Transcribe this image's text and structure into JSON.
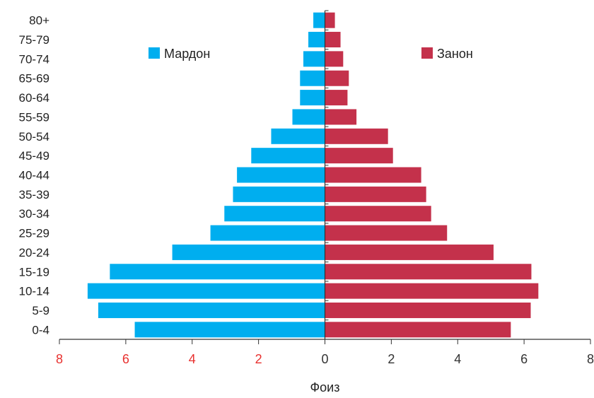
{
  "chart_data": {
    "type": "bar",
    "orientation": "horizontal",
    "layout": "population-pyramid",
    "categories": [
      "80+",
      "75-79",
      "70-74",
      "65-69",
      "60-64",
      "55-59",
      "50-54",
      "45-49",
      "40-44",
      "35-39",
      "30-34",
      "25-29",
      "20-24",
      "15-19",
      "10-14",
      "5-9",
      "0-4"
    ],
    "series": [
      {
        "name": "Мардон",
        "side": "left",
        "color": "#00aeef",
        "values": [
          0.35,
          0.5,
          0.65,
          0.75,
          0.75,
          0.98,
          1.62,
          2.22,
          2.65,
          2.77,
          3.03,
          3.45,
          4.6,
          6.48,
          7.15,
          6.83,
          5.73
        ]
      },
      {
        "name": "Занон",
        "side": "right",
        "color": "#c4314b",
        "values": [
          0.3,
          0.47,
          0.55,
          0.72,
          0.68,
          0.95,
          1.9,
          2.05,
          2.9,
          3.05,
          3.2,
          3.68,
          5.08,
          6.22,
          6.43,
          6.2,
          5.6
        ]
      }
    ],
    "xlabel": "Фоиз",
    "ylabel": "",
    "title": "",
    "xlim": [
      -8,
      8
    ],
    "x_tick_labels": [
      {
        "value": -8,
        "label": "8"
      },
      {
        "value": -6,
        "label": "6"
      },
      {
        "value": -4,
        "label": "4"
      },
      {
        "value": -2,
        "label": "2"
      },
      {
        "value": 0,
        "label": "0"
      },
      {
        "value": 2,
        "label": "2"
      },
      {
        "value": 4,
        "label": "4"
      },
      {
        "value": 6,
        "label": "6"
      },
      {
        "value": 8,
        "label": "8"
      }
    ],
    "negative_tick_color": "#e8312f",
    "positive_tick_color": "#333333",
    "legend": "inside-top",
    "grid": false
  }
}
